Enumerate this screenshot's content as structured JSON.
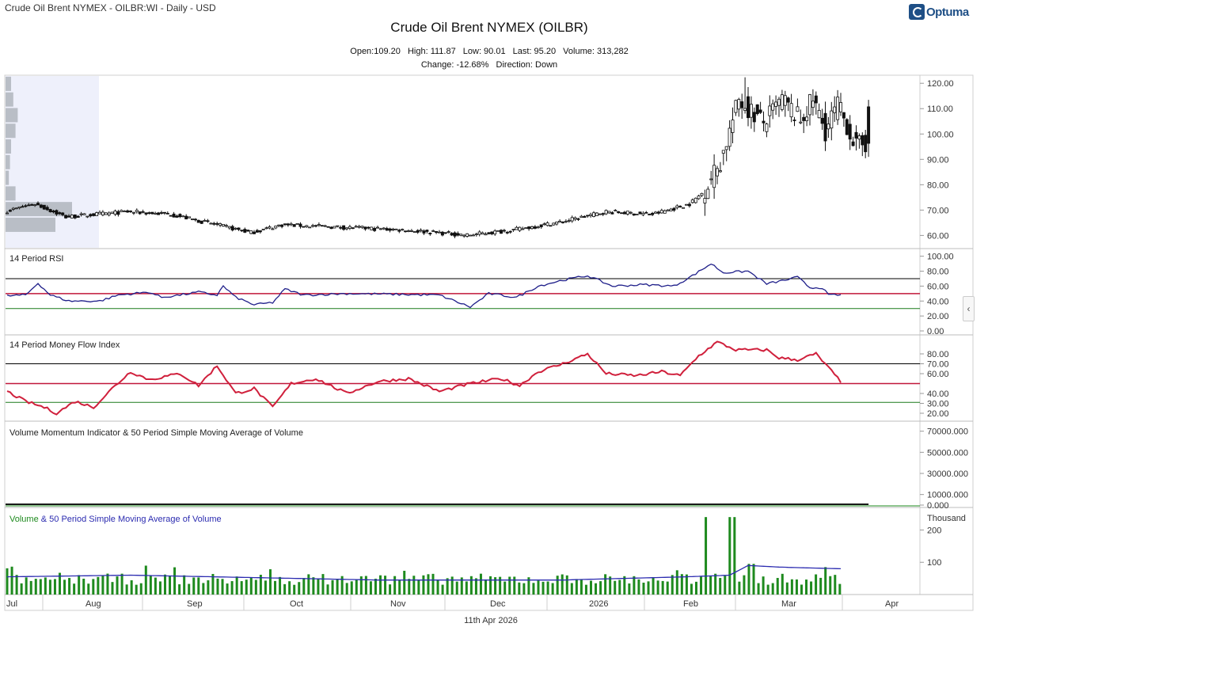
{
  "header": {
    "window_title": "Crude Oil Brent NYMEX - OILBR:WI - Daily - USD",
    "chart_title": "Crude Oil Brent NYMEX (OILBR)",
    "open": "Open:109.20",
    "high": "High: 111.87",
    "low": "Low: 90.01",
    "last": "Last: 95.20",
    "volume": "Volume: 313,282",
    "change": "Change: -12.68%",
    "direction": "Direction: Down",
    "brand": "Optuma"
  },
  "footer": {
    "date": "11th Apr 2026"
  },
  "ui": {
    "collapse_glyph": "‹",
    "collapse_icon": "chevron-left-icon"
  },
  "colors": {
    "rsi_line": "#1f1f8a",
    "mfi_line": "#d0203c",
    "volume_bar": "#1e8a1e",
    "volume_ma": "#2b2bb0",
    "upper_band": "#000000",
    "mid_band": "#c0173a",
    "lower_band": "#1a7a1a",
    "volume_profile": "#b9bec6",
    "profile_bg": "#eef0fb"
  },
  "chart_data": [
    {
      "type": "candlestick",
      "title": "Crude Oil Brent NYMEX (OILBR)",
      "yticks": [
        "60.00",
        "70.00",
        "80.00",
        "90.00",
        "100.00",
        "110.00",
        "120.00"
      ],
      "ylim": [
        57,
        121
      ],
      "x_axis_months": [
        "Jul",
        "Aug",
        "Sep",
        "Oct",
        "Nov",
        "Dec",
        "2026",
        "Feb",
        "Mar",
        "Apr"
      ],
      "anchors_close": [
        [
          0,
          69
        ],
        [
          10,
          72
        ],
        [
          20,
          67
        ],
        [
          40,
          69
        ],
        [
          54,
          68
        ],
        [
          65,
          65
        ],
        [
          80,
          61
        ],
        [
          90,
          64
        ],
        [
          110,
          63
        ],
        [
          130,
          62
        ],
        [
          150,
          60
        ],
        [
          165,
          62
        ],
        [
          180,
          65
        ],
        [
          195,
          69
        ],
        [
          210,
          68
        ],
        [
          222,
          72
        ],
        [
          226,
          76
        ],
        [
          232,
          88
        ],
        [
          238,
          112
        ],
        [
          246,
          103
        ],
        [
          252,
          112
        ],
        [
          258,
          104
        ],
        [
          262,
          112
        ],
        [
          266,
          100
        ],
        [
          270,
          110
        ],
        [
          276,
          94
        ],
        [
          280,
          95
        ]
      ],
      "last_bar": {
        "open": 109.2,
        "high": 111.87,
        "low": 90.01,
        "close": 95.2
      },
      "volume_profile_bins": [
        {
          "price": 118,
          "volume": 0.25
        },
        {
          "price": 112,
          "volume": 0.35
        },
        {
          "price": 106,
          "volume": 0.55
        },
        {
          "price": 100,
          "volume": 0.45
        },
        {
          "price": 94,
          "volume": 0.25
        },
        {
          "price": 88,
          "volume": 0.2
        },
        {
          "price": 82,
          "volume": 0.15
        },
        {
          "price": 76,
          "volume": 0.45
        },
        {
          "price": 70,
          "volume": 3.0
        },
        {
          "price": 64,
          "volume": 2.25
        }
      ]
    },
    {
      "type": "line",
      "name": "14 Period RSI",
      "yticks": [
        "0.00",
        "20.00",
        "40.00",
        "60.00",
        "80.00",
        "100.00"
      ],
      "ylim": [
        0,
        106
      ],
      "bands": [
        70,
        50,
        30
      ],
      "anchors": [
        [
          0,
          47
        ],
        [
          6,
          48
        ],
        [
          10,
          64
        ],
        [
          14,
          48
        ],
        [
          20,
          40
        ],
        [
          30,
          40
        ],
        [
          36,
          48
        ],
        [
          46,
          52
        ],
        [
          50,
          45
        ],
        [
          56,
          48
        ],
        [
          62,
          52
        ],
        [
          68,
          48
        ],
        [
          70,
          60
        ],
        [
          74,
          45
        ],
        [
          80,
          35
        ],
        [
          86,
          38
        ],
        [
          90,
          56
        ],
        [
          96,
          48
        ],
        [
          110,
          50
        ],
        [
          126,
          49
        ],
        [
          140,
          48
        ],
        [
          150,
          32
        ],
        [
          156,
          50
        ],
        [
          165,
          45
        ],
        [
          172,
          60
        ],
        [
          180,
          68
        ],
        [
          188,
          74
        ],
        [
          196,
          60
        ],
        [
          206,
          62
        ],
        [
          216,
          60
        ],
        [
          222,
          74
        ],
        [
          228,
          90
        ],
        [
          232,
          78
        ],
        [
          240,
          80
        ],
        [
          246,
          63
        ],
        [
          252,
          68
        ],
        [
          256,
          72
        ],
        [
          260,
          58
        ],
        [
          264,
          58
        ],
        [
          266,
          48
        ],
        [
          270,
          48
        ]
      ]
    },
    {
      "type": "line",
      "name": "14 Period Money Flow Index",
      "yticks": [
        "20.00",
        "30.00",
        "40.00",
        "60.00",
        "70.00",
        "80.00"
      ],
      "ylim": [
        16,
        96
      ],
      "bands": [
        70,
        50,
        31
      ],
      "anchors": [
        [
          0,
          42
        ],
        [
          6,
          32
        ],
        [
          12,
          26
        ],
        [
          16,
          20
        ],
        [
          22,
          32
        ],
        [
          28,
          26
        ],
        [
          34,
          45
        ],
        [
          40,
          62
        ],
        [
          46,
          54
        ],
        [
          56,
          60
        ],
        [
          62,
          48
        ],
        [
          68,
          68
        ],
        [
          74,
          40
        ],
        [
          80,
          45
        ],
        [
          86,
          26
        ],
        [
          92,
          50
        ],
        [
          100,
          55
        ],
        [
          110,
          40
        ],
        [
          120,
          52
        ],
        [
          130,
          55
        ],
        [
          140,
          42
        ],
        [
          150,
          50
        ],
        [
          160,
          55
        ],
        [
          166,
          48
        ],
        [
          172,
          62
        ],
        [
          180,
          70
        ],
        [
          188,
          80
        ],
        [
          194,
          60
        ],
        [
          204,
          58
        ],
        [
          212,
          62
        ],
        [
          218,
          58
        ],
        [
          224,
          78
        ],
        [
          230,
          92
        ],
        [
          236,
          84
        ],
        [
          246,
          84
        ],
        [
          250,
          76
        ],
        [
          256,
          74
        ],
        [
          262,
          80
        ],
        [
          266,
          66
        ],
        [
          270,
          52
        ]
      ]
    },
    {
      "type": "line",
      "name": "Volume Momentum Indicator & 50 Period Simple Moving Average of Volume",
      "yticks": [
        "0.000",
        "10000.000",
        "30000.000",
        "50000.000",
        "70000.000"
      ],
      "ylim": [
        0,
        78000
      ],
      "values_constant": 0
    },
    {
      "type": "bar",
      "name_parts": [
        "Volume",
        " & 50 Period Simple Moving Average of Volume"
      ],
      "ylabel": "Thousand",
      "yticks": [
        "100",
        "200"
      ],
      "ylim": [
        0,
        260
      ],
      "spikes": [
        [
          226,
          240
        ],
        [
          230,
          240
        ],
        [
          234,
          240
        ],
        [
          236,
          240
        ],
        [
          232,
          150
        ],
        [
          238,
          150
        ],
        [
          240,
          95
        ],
        [
          242,
          95
        ],
        [
          244,
          80
        ],
        [
          255,
          95
        ],
        [
          265,
          85
        ]
      ],
      "ma_anchors": [
        [
          0,
          55
        ],
        [
          40,
          60
        ],
        [
          120,
          45
        ],
        [
          180,
          45
        ],
        [
          220,
          55
        ],
        [
          234,
          60
        ],
        [
          240,
          90
        ],
        [
          250,
          85
        ],
        [
          262,
          82
        ],
        [
          270,
          80
        ]
      ]
    }
  ]
}
